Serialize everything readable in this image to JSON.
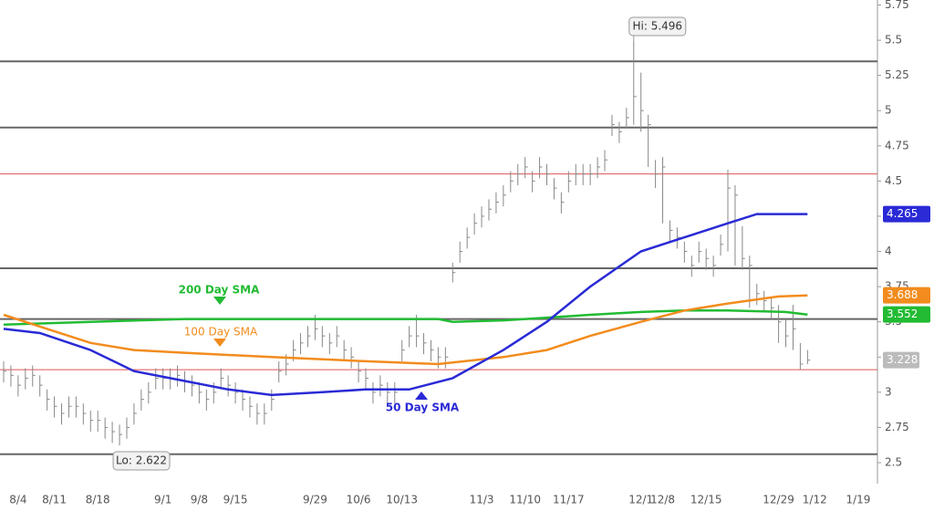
{
  "chart_data": {
    "type": "ohlc",
    "categories": [
      null,
      null,
      "8/4",
      null,
      null,
      null,
      null,
      "8/11",
      null,
      null,
      null,
      null,
      null,
      "8/18",
      null,
      null,
      null,
      null,
      null,
      null,
      null,
      null,
      "9/1",
      null,
      null,
      null,
      null,
      "9/8",
      null,
      null,
      null,
      null,
      "9/15",
      null,
      null,
      null,
      null,
      null,
      null,
      null,
      null,
      null,
      null,
      "9/29",
      null,
      null,
      null,
      null,
      null,
      "10/6",
      null,
      null,
      null,
      null,
      null,
      "10/13",
      null,
      null,
      null,
      null,
      null,
      null,
      null,
      null,
      null,
      null,
      "11/3",
      null,
      null,
      null,
      null,
      null,
      "11/10",
      null,
      null,
      null,
      null,
      null,
      "11/17",
      null,
      null,
      null,
      null,
      null,
      null,
      null,
      null,
      null,
      "12/1",
      null,
      null,
      "12/8",
      null,
      null,
      null,
      null,
      null,
      "12/15",
      null,
      null,
      null,
      null,
      null,
      null,
      null,
      null,
      null,
      "12/29",
      null,
      null,
      null,
      null,
      "1/12",
      null,
      null,
      null,
      null,
      null,
      "1/19"
    ],
    "high": [
      3.22,
      3.19,
      3.12,
      3.17,
      3.19,
      3.12,
      3.02,
      2.97,
      2.92,
      2.97,
      2.97,
      2.92,
      2.87,
      2.87,
      2.82,
      2.79,
      2.77,
      2.82,
      2.92,
      3.02,
      3.07,
      3.17,
      3.17,
      3.17,
      3.19,
      3.15,
      3.12,
      3.07,
      3.02,
      3.07,
      3.17,
      3.12,
      3.07,
      3.02,
      2.97,
      2.92,
      2.92,
      3.02,
      3.22,
      3.27,
      3.37,
      3.42,
      3.47,
      3.55,
      3.47,
      3.42,
      3.47,
      3.37,
      3.32,
      3.22,
      3.17,
      3.07,
      3.12,
      3.07,
      3.07,
      3.37,
      3.47,
      3.55,
      3.42,
      3.37,
      3.32,
      3.32,
      3.92,
      4.07,
      4.17,
      4.27,
      4.32,
      4.37,
      4.42,
      4.47,
      4.57,
      4.62,
      4.67,
      4.57,
      4.67,
      4.62,
      4.52,
      4.42,
      4.57,
      4.62,
      4.62,
      4.62,
      4.67,
      4.72,
      4.97,
      4.92,
      5.02,
      5.496,
      5.27,
      4.97,
      4.65,
      4.67,
      4.22,
      4.17,
      4.07,
      3.97,
      4.07,
      4.02,
      3.97,
      4.12,
      4.58,
      4.47,
      4.18,
      3.97,
      3.77,
      3.72,
      3.67,
      3.62,
      3.52,
      3.62,
      3.35,
      3.3,
      null,
      null,
      null,
      null,
      null,
      null,
      null
    ],
    "low": [
      3.07,
      3.04,
      2.97,
      3.02,
      3.04,
      2.97,
      2.87,
      2.82,
      2.77,
      2.82,
      2.82,
      2.77,
      2.72,
      2.72,
      2.67,
      2.64,
      2.622,
      2.67,
      2.77,
      2.87,
      2.92,
      3.02,
      3.02,
      3.02,
      3.04,
      3.0,
      2.97,
      2.92,
      2.87,
      2.92,
      3.02,
      2.97,
      2.92,
      2.87,
      2.82,
      2.77,
      2.77,
      2.87,
      3.07,
      3.12,
      3.22,
      3.27,
      3.32,
      3.37,
      3.32,
      3.27,
      3.32,
      3.22,
      3.17,
      3.07,
      3.02,
      2.92,
      2.97,
      2.92,
      2.92,
      3.22,
      3.32,
      3.32,
      3.27,
      3.22,
      3.17,
      3.17,
      3.78,
      3.92,
      4.02,
      4.12,
      4.17,
      4.22,
      4.27,
      4.32,
      4.42,
      4.47,
      4.52,
      4.42,
      4.52,
      4.47,
      4.37,
      4.27,
      4.42,
      4.47,
      4.47,
      4.47,
      4.52,
      4.57,
      4.82,
      4.77,
      4.87,
      4.9,
      4.85,
      4.6,
      4.45,
      4.2,
      4.07,
      4.02,
      3.92,
      3.82,
      3.92,
      3.87,
      3.82,
      3.97,
      4.0,
      3.9,
      3.87,
      3.6,
      3.62,
      3.57,
      3.52,
      3.35,
      3.32,
      3.3,
      3.16,
      3.2,
      null,
      null,
      null,
      null,
      null,
      null,
      null
    ],
    "close": [
      3.15,
      3.12,
      3.05,
      3.1,
      3.12,
      3.05,
      2.95,
      2.9,
      2.85,
      2.9,
      2.9,
      2.85,
      2.8,
      2.8,
      2.75,
      2.72,
      2.7,
      2.75,
      2.85,
      2.95,
      3.0,
      3.1,
      3.1,
      3.1,
      3.12,
      3.08,
      3.05,
      3.0,
      2.95,
      3.0,
      3.1,
      3.05,
      3.0,
      2.95,
      2.9,
      2.85,
      2.85,
      2.95,
      3.15,
      3.2,
      3.3,
      3.35,
      3.4,
      3.45,
      3.4,
      3.35,
      3.4,
      3.3,
      3.25,
      3.15,
      3.1,
      3.0,
      3.05,
      3.0,
      3.0,
      3.3,
      3.4,
      3.4,
      3.35,
      3.3,
      3.25,
      3.25,
      3.85,
      4.0,
      4.1,
      4.2,
      4.25,
      4.3,
      4.35,
      4.4,
      4.5,
      4.55,
      4.6,
      4.5,
      4.6,
      4.55,
      4.45,
      4.35,
      4.5,
      4.55,
      4.55,
      4.55,
      4.6,
      4.65,
      4.9,
      4.85,
      4.95,
      5.1,
      5.0,
      4.9,
      4.55,
      4.6,
      4.15,
      4.1,
      4.0,
      3.9,
      4.0,
      3.95,
      3.9,
      4.05,
      4.45,
      4.4,
      3.95,
      3.9,
      3.7,
      3.65,
      3.6,
      3.5,
      3.4,
      3.45,
      3.2,
      3.228,
      null,
      null,
      null,
      null,
      null,
      null,
      null
    ],
    "bar_color": "#888888",
    "series": [
      {
        "name": "200 Day SMA",
        "color": "#22bb33",
        "x": [
          0,
          12,
          25,
          37,
          50,
          60,
          62,
          69,
          75,
          81,
          88,
          94,
          100,
          108,
          111
        ],
        "values": [
          3.48,
          3.5,
          3.52,
          3.52,
          3.52,
          3.52,
          3.5,
          3.51,
          3.53,
          3.55,
          3.57,
          3.58,
          3.58,
          3.57,
          3.552
        ]
      },
      {
        "name": "100  Day SMA",
        "color": "#f28c1e",
        "x": [
          0,
          6,
          12,
          18,
          25,
          37,
          50,
          60,
          69,
          75,
          81,
          88,
          94,
          100,
          107,
          111
        ],
        "values": [
          3.55,
          3.45,
          3.35,
          3.3,
          3.28,
          3.25,
          3.22,
          3.2,
          3.25,
          3.3,
          3.4,
          3.5,
          3.58,
          3.63,
          3.68,
          3.688
        ]
      },
      {
        "name": "50 Day SMA",
        "color": "#2a2ad6",
        "x": [
          0,
          5,
          12,
          18,
          25,
          31,
          37,
          44,
          50,
          56,
          62,
          69,
          75,
          81,
          88,
          94,
          100,
          104,
          111
        ],
        "values": [
          3.45,
          3.42,
          3.3,
          3.15,
          3.08,
          3.02,
          2.98,
          3.0,
          3.02,
          3.02,
          3.1,
          3.3,
          3.5,
          3.75,
          4.0,
          4.1,
          4.2,
          4.265,
          4.265
        ]
      }
    ],
    "levels": [
      5.35,
      4.88,
      3.88,
      3.52,
      2.56
    ],
    "level_color": "#666666",
    "red_levels": [
      4.55,
      3.16
    ],
    "red_color": "#e05555",
    "hi_label": "Hi: 5.496",
    "lo_label": "Lo: 2.622",
    "ylim": [
      2.5,
      5.75
    ],
    "yticks": [
      2.5,
      2.75,
      3,
      3.25,
      3.5,
      3.75,
      4,
      4.25,
      4.5,
      4.75,
      5,
      5.25,
      5.5,
      5.75
    ]
  }
}
